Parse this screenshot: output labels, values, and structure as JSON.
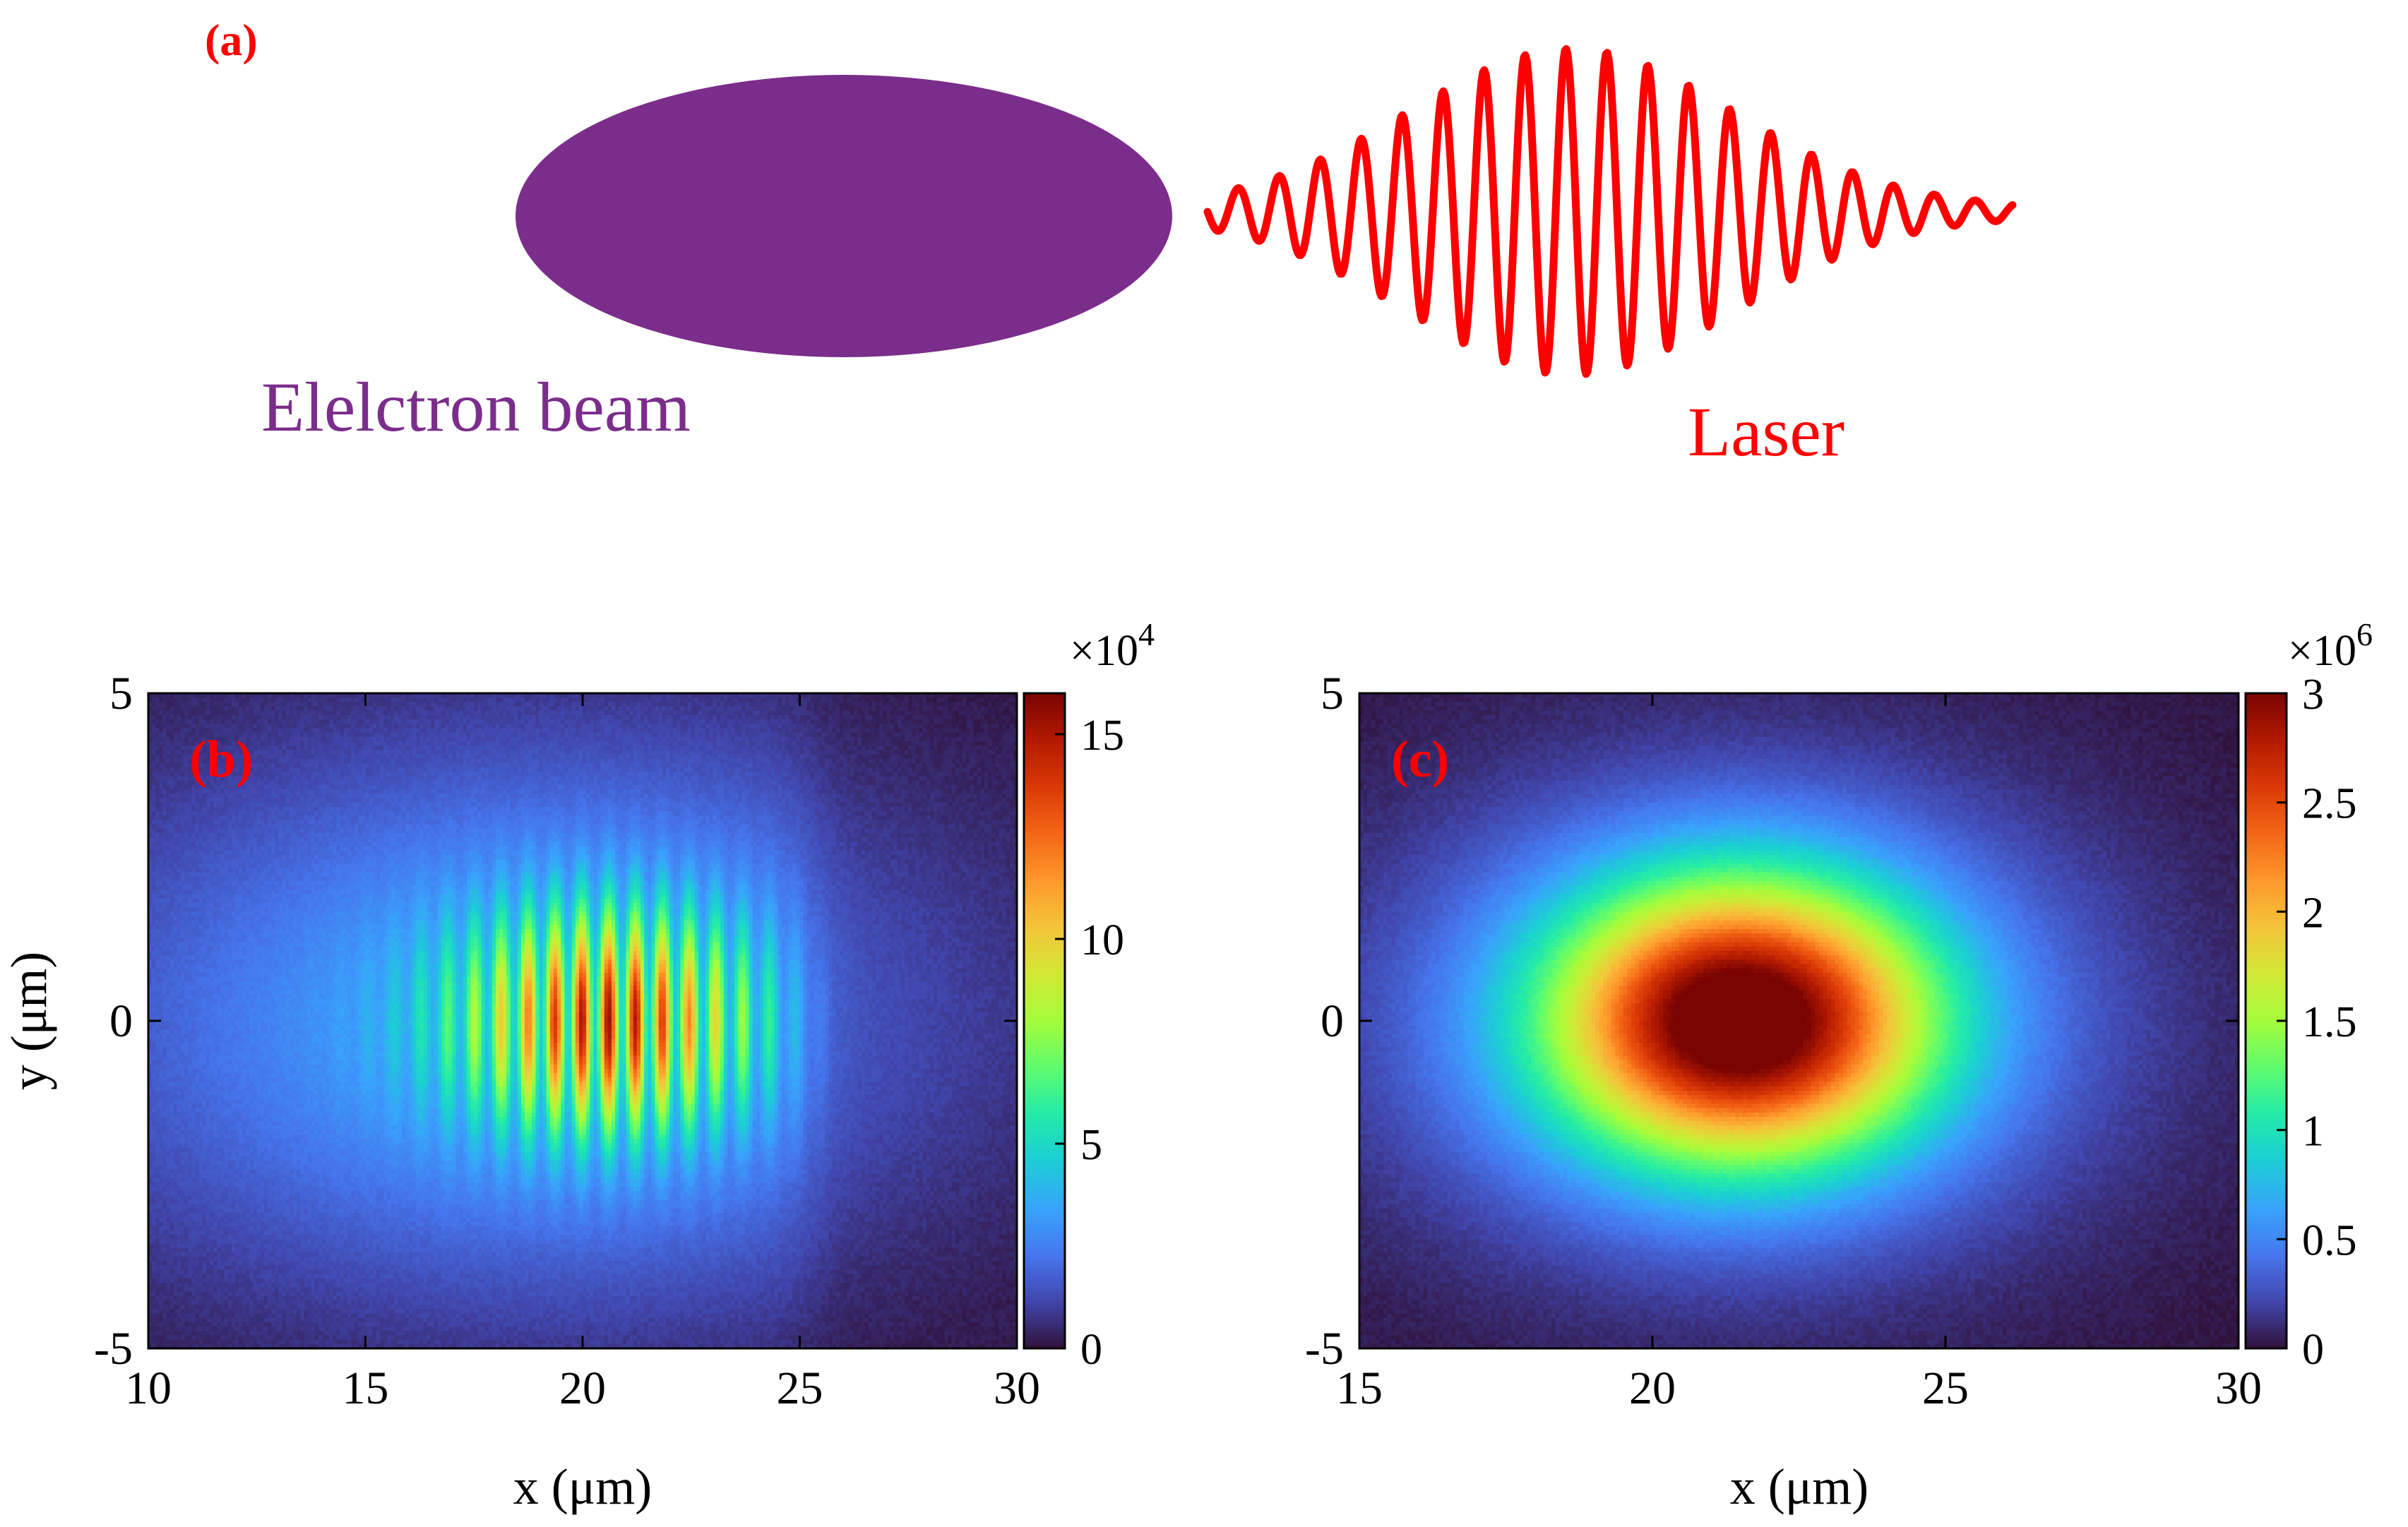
{
  "colors": {
    "beam": "#7b2d8b",
    "laser": "#ff0000",
    "panel_label": "#ff0000",
    "axis": "#000000",
    "background_low": "#30123b"
  },
  "panel_a": {
    "label": "(a)",
    "beam_label": "Elelctron beam",
    "laser_label": "Laser"
  },
  "chart_data": [
    {
      "type": "heatmap",
      "panel_label": "(b)",
      "xlabel": "x (μm)",
      "ylabel": "y (μm)",
      "xlim": [
        10,
        30
      ],
      "ylim": [
        -5,
        5
      ],
      "xticks": [
        10,
        15,
        20,
        25,
        30
      ],
      "xtick_labels": [
        "10",
        "15",
        "20",
        "25",
        "30"
      ],
      "yticks": [
        -5,
        0,
        5
      ],
      "ytick_labels": [
        "-5",
        "0",
        "5"
      ],
      "colormap": "turbo",
      "colorbar": {
        "exponent_label": "×10",
        "exponent": "4",
        "lim": [
          0,
          16
        ],
        "ticks": [
          0,
          5,
          10,
          15
        ],
        "tick_labels": [
          "0",
          "5",
          "10",
          "15"
        ]
      },
      "distribution": {
        "center_x": 20.5,
        "center_y": 0,
        "peak": 15.5,
        "modulation": "interference fringes along x, front edge near x = 25"
      }
    },
    {
      "type": "heatmap",
      "panel_label": "(c)",
      "xlabel": "x (μm)",
      "ylabel": "",
      "xlim": [
        15,
        30
      ],
      "ylim": [
        -5,
        5
      ],
      "xticks": [
        15,
        20,
        25,
        30
      ],
      "xtick_labels": [
        "15",
        "20",
        "25",
        "30"
      ],
      "yticks": [
        -5,
        0,
        5
      ],
      "ytick_labels": [
        "-5",
        "0",
        "5"
      ],
      "colormap": "turbo",
      "colorbar": {
        "exponent_label": "×10",
        "exponent": "6",
        "lim": [
          0,
          3
        ],
        "ticks": [
          0,
          0.5,
          1,
          1.5,
          2,
          2.5,
          3
        ],
        "tick_labels": [
          "0",
          "0.5",
          "1",
          "1.5",
          "2",
          "2.5",
          "3"
        ]
      },
      "distribution": {
        "center_x": 21.5,
        "center_y": 0,
        "peak": 2.95,
        "modulation": "smooth elliptical Gaussian"
      }
    }
  ]
}
